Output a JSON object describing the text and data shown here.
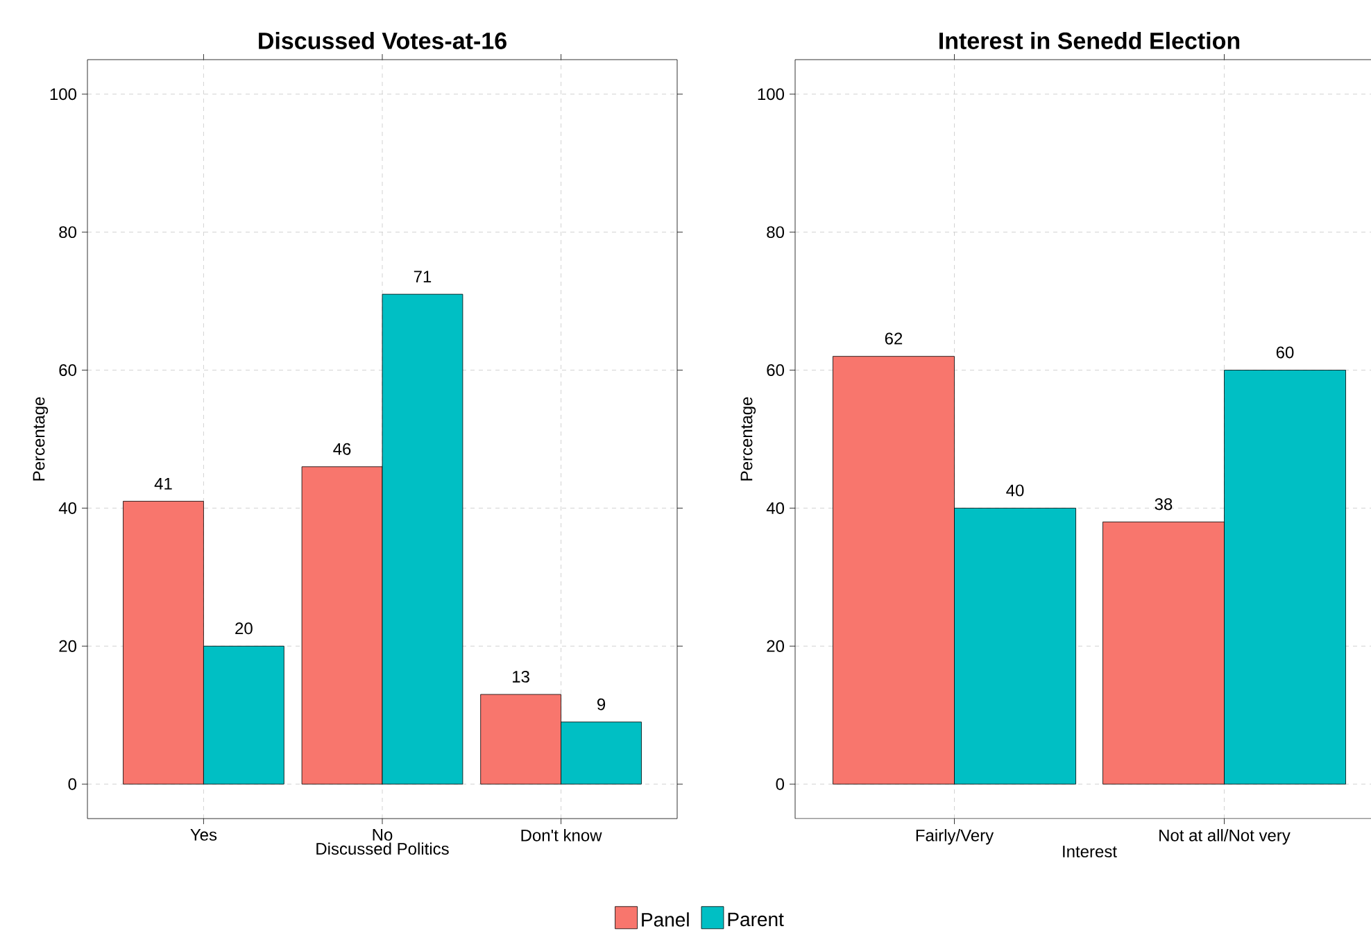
{
  "chart_data": [
    {
      "type": "bar",
      "title": "Discussed Votes-at-16",
      "xlabel": "Discussed Politics",
      "ylabel": "Percentage",
      "categories": [
        "Yes",
        "No",
        "Don't know"
      ],
      "series": [
        {
          "name": "Panel",
          "color": "#f8766d",
          "values": [
            41,
            46,
            13
          ]
        },
        {
          "name": "Parent",
          "color": "#00bfc4",
          "values": [
            20,
            71,
            9
          ]
        }
      ],
      "ylim": [
        -5,
        105
      ],
      "yticks": [
        0,
        20,
        40,
        60,
        80,
        100
      ],
      "grid": true,
      "legend": "bottom",
      "data_labels": true
    },
    {
      "type": "bar",
      "title": "Interest in Senedd Election",
      "xlabel": "Interest",
      "ylabel": "Percentage",
      "categories": [
        "Fairly/Very",
        "Not at all/Not very"
      ],
      "series": [
        {
          "color": "#f8766d",
          "values": [
            62,
            38
          ]
        },
        {
          "color": "#00bfc4",
          "values": [
            40,
            60
          ]
        }
      ],
      "ylim": [
        -5,
        105
      ],
      "yticks": [
        0,
        20,
        40,
        60,
        80,
        100
      ],
      "grid": true,
      "data_labels": true
    }
  ]
}
